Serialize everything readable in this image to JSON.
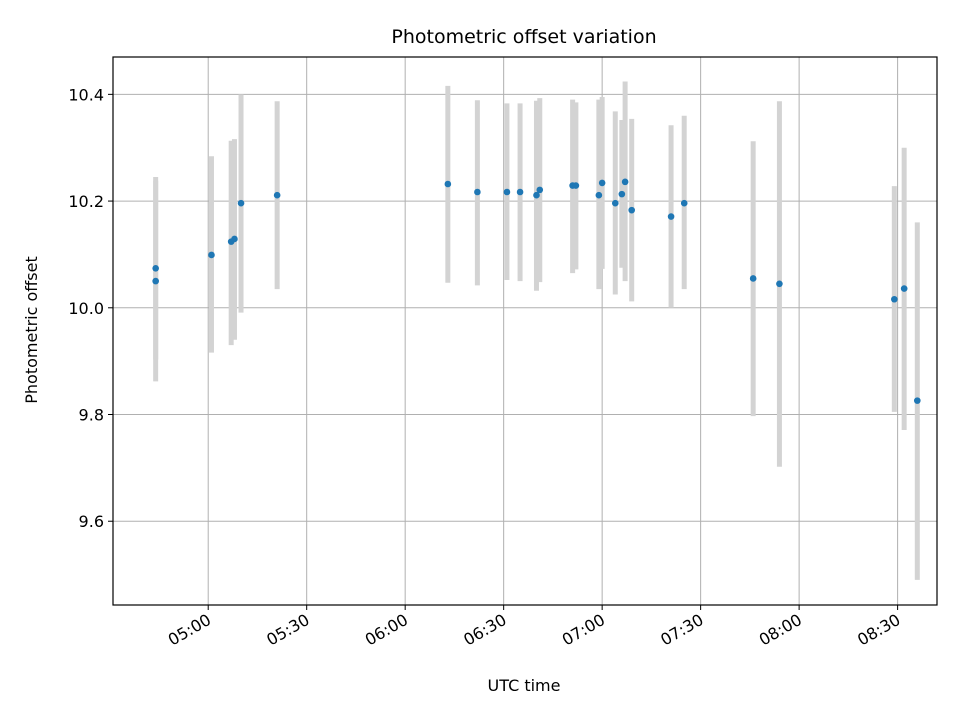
{
  "chart_data": {
    "type": "scatter",
    "title": "Photometric offset variation",
    "xlabel": "UTC time",
    "ylabel": "Photometric offset",
    "x_unit": "UTC",
    "xlim": [
      "04:31",
      "08:42"
    ],
    "ylim": [
      9.443,
      10.47
    ],
    "grid": true,
    "x_ticks": [
      "05:00",
      "05:30",
      "06:00",
      "06:30",
      "07:00",
      "07:30",
      "08:00",
      "08:30"
    ],
    "y_ticks": [
      9.6,
      9.8,
      10.0,
      10.2,
      10.4
    ],
    "y_tick_labels": [
      "9.6",
      "9.8",
      "10.0",
      "10.2",
      "10.4"
    ],
    "colors": {
      "points": "#1f77b4",
      "error_bars": "#d3d3d3",
      "grid": "#b0b0b0"
    },
    "points": [
      {
        "x": "04:44",
        "y": 10.074,
        "ylow": 9.903,
        "yhigh": 10.245
      },
      {
        "x": "04:44",
        "y": 10.05,
        "ylow": 9.862,
        "yhigh": 10.238
      },
      {
        "x": "05:01",
        "y": 10.099,
        "ylow": 9.916,
        "yhigh": 10.284
      },
      {
        "x": "05:07",
        "y": 10.124,
        "ylow": 9.93,
        "yhigh": 10.313
      },
      {
        "x": "05:08",
        "y": 10.129,
        "ylow": 9.94,
        "yhigh": 10.316
      },
      {
        "x": "05:10",
        "y": 10.196,
        "ylow": 9.991,
        "yhigh": 10.4
      },
      {
        "x": "05:21",
        "y": 10.211,
        "ylow": 10.035,
        "yhigh": 10.387
      },
      {
        "x": "06:13",
        "y": 10.232,
        "ylow": 10.047,
        "yhigh": 10.416
      },
      {
        "x": "06:22",
        "y": 10.217,
        "ylow": 10.042,
        "yhigh": 10.389
      },
      {
        "x": "06:31",
        "y": 10.217,
        "ylow": 10.052,
        "yhigh": 10.383
      },
      {
        "x": "06:35",
        "y": 10.217,
        "ylow": 10.05,
        "yhigh": 10.383
      },
      {
        "x": "06:40",
        "y": 10.211,
        "ylow": 10.032,
        "yhigh": 10.388
      },
      {
        "x": "06:41",
        "y": 10.221,
        "ylow": 10.048,
        "yhigh": 10.393
      },
      {
        "x": "06:51",
        "y": 10.229,
        "ylow": 10.065,
        "yhigh": 10.39
      },
      {
        "x": "06:52",
        "y": 10.229,
        "ylow": 10.072,
        "yhigh": 10.385
      },
      {
        "x": "06:59",
        "y": 10.211,
        "ylow": 10.035,
        "yhigh": 10.39
      },
      {
        "x": "07:00",
        "y": 10.234,
        "ylow": 10.073,
        "yhigh": 10.395
      },
      {
        "x": "07:04",
        "y": 10.196,
        "ylow": 10.025,
        "yhigh": 10.368
      },
      {
        "x": "07:06",
        "y": 10.213,
        "ylow": 10.075,
        "yhigh": 10.352
      },
      {
        "x": "07:07",
        "y": 10.236,
        "ylow": 10.05,
        "yhigh": 10.424
      },
      {
        "x": "07:09",
        "y": 10.183,
        "ylow": 10.012,
        "yhigh": 10.354
      },
      {
        "x": "07:21",
        "y": 10.171,
        "ylow": 10.0,
        "yhigh": 10.342
      },
      {
        "x": "07:25",
        "y": 10.196,
        "ylow": 10.035,
        "yhigh": 10.36
      },
      {
        "x": "07:46",
        "y": 10.055,
        "ylow": 9.797,
        "yhigh": 10.312
      },
      {
        "x": "07:54",
        "y": 10.045,
        "ylow": 9.702,
        "yhigh": 10.387
      },
      {
        "x": "08:29",
        "y": 10.016,
        "ylow": 9.805,
        "yhigh": 10.228
      },
      {
        "x": "08:32",
        "y": 10.036,
        "ylow": 9.771,
        "yhigh": 10.3
      },
      {
        "x": "08:36",
        "y": 9.826,
        "ylow": 9.49,
        "yhigh": 10.16
      }
    ]
  }
}
